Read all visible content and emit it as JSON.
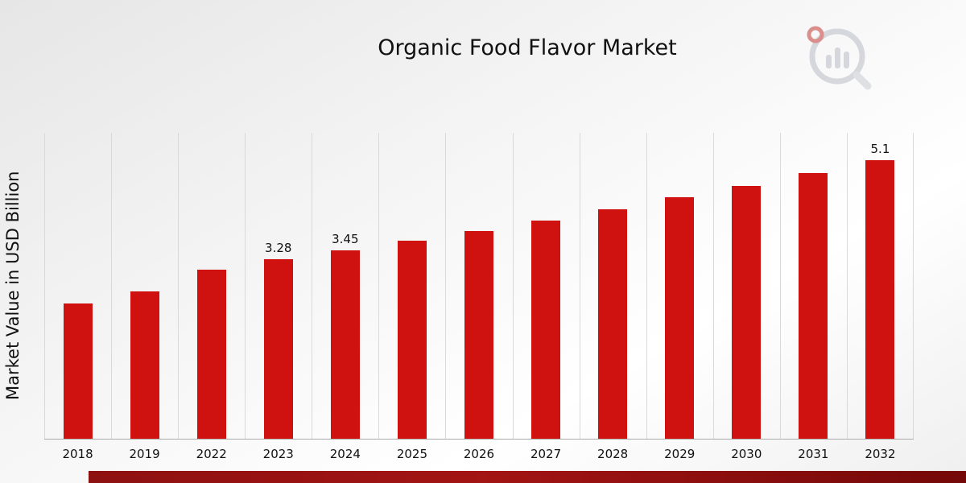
{
  "chart_data": {
    "type": "bar",
    "title": "Organic Food Flavor Market",
    "ylabel": "Market Value in USD Billion",
    "categories": [
      "2018",
      "2019",
      "2022",
      "2023",
      "2024",
      "2025",
      "2026",
      "2027",
      "2028",
      "2029",
      "2030",
      "2031",
      "2032"
    ],
    "values": [
      2.48,
      2.7,
      3.1,
      3.28,
      3.45,
      3.63,
      3.8,
      4.0,
      4.2,
      4.42,
      4.63,
      4.86,
      5.1
    ],
    "bar_labels": [
      "",
      "",
      "",
      "3.28",
      "3.45",
      "",
      "",
      "",
      "",
      "",
      "",
      "",
      "5.1"
    ],
    "ylim": [
      0,
      5.6
    ],
    "bar_color": "#cf1110",
    "grid": "vertical",
    "legend": "none"
  },
  "branding": {
    "logo_icon": "magnifier-bar-chart-logo"
  },
  "footer": {
    "accent_color": "#8e1111"
  }
}
